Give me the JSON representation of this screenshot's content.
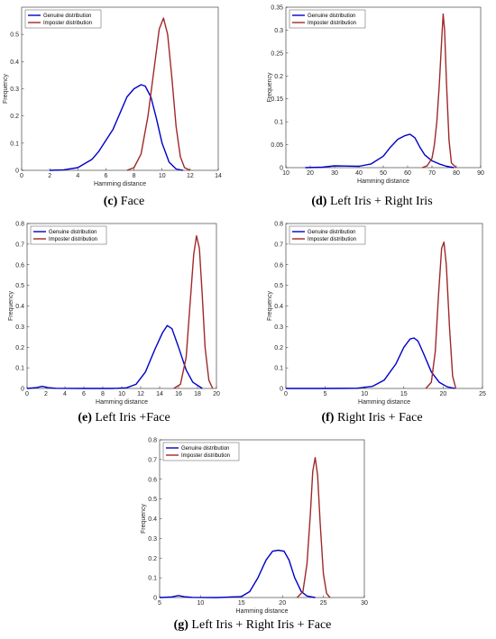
{
  "colors": {
    "genuine": "#0000c8",
    "imposter": "#a0282a",
    "axis": "#262626"
  },
  "panels": [
    {
      "caption_letter": "(c)",
      "caption_text": " Face",
      "chart_data": {
        "type": "line",
        "xlabel": "Hamming distance",
        "ylabel": "Frequency",
        "xlim": [
          0,
          14
        ],
        "ylim": [
          0,
          0.6
        ],
        "xticks": [
          0,
          2,
          4,
          6,
          8,
          10,
          12,
          14
        ],
        "yticks": [
          0,
          0.1,
          0.2,
          0.3,
          0.4,
          0.5
        ],
        "legend": "top-left",
        "grid": false,
        "series": [
          {
            "name": "Genuine distribution",
            "color": "genuine",
            "x": [
              2,
              3,
              4,
              5,
              5.5,
              6,
              6.5,
              7,
              7.5,
              8,
              8.5,
              8.8,
              9.2,
              9.6,
              10,
              10.5,
              11,
              11.5
            ],
            "y": [
              0,
              0.002,
              0.01,
              0.04,
              0.07,
              0.11,
              0.15,
              0.21,
              0.27,
              0.3,
              0.315,
              0.31,
              0.27,
              0.19,
              0.1,
              0.03,
              0.005,
              0
            ]
          },
          {
            "name": "Imposter distribution",
            "color": "imposter",
            "x": [
              7.5,
              8,
              8.5,
              9,
              9.5,
              9.8,
              10.1,
              10.4,
              10.7,
              11,
              11.3,
              11.6,
              12
            ],
            "y": [
              0,
              0.01,
              0.06,
              0.2,
              0.4,
              0.52,
              0.56,
              0.5,
              0.34,
              0.16,
              0.05,
              0.01,
              0
            ]
          }
        ]
      }
    },
    {
      "caption_letter": "(d)",
      "caption_text": " Left Iris + Right Iris",
      "chart_data": {
        "type": "line",
        "xlabel": "Hamming distance",
        "ylabel": "Frequency",
        "xlim": [
          10,
          90
        ],
        "ylim": [
          0,
          0.35
        ],
        "xticks": [
          10,
          20,
          30,
          40,
          50,
          60,
          70,
          80,
          90
        ],
        "yticks": [
          0,
          0.05,
          0.1,
          0.15,
          0.2,
          0.25,
          0.3,
          0.35
        ],
        "legend": "top-left",
        "grid": false,
        "series": [
          {
            "name": "Genuine distribution",
            "color": "genuine",
            "x": [
              18,
              25,
              30,
              40,
              45,
              50,
              53,
              56,
              59,
              61,
              63,
              65,
              67,
              70,
              73,
              76,
              79
            ],
            "y": [
              0,
              0.001,
              0.004,
              0.003,
              0.008,
              0.025,
              0.045,
              0.062,
              0.07,
              0.073,
              0.065,
              0.045,
              0.028,
              0.015,
              0.008,
              0.003,
              0
            ]
          },
          {
            "name": "Imposter distribution",
            "color": "imposter",
            "x": [
              66,
              68,
              70,
              71,
              72,
              73,
              74,
              74.6,
              75.2,
              76,
              77,
              78,
              80
            ],
            "y": [
              0,
              0.004,
              0.02,
              0.05,
              0.1,
              0.18,
              0.28,
              0.335,
              0.3,
              0.18,
              0.06,
              0.01,
              0
            ]
          }
        ]
      }
    },
    {
      "caption_letter": "(e)",
      "caption_text": " Left Iris +Face",
      "chart_data": {
        "type": "line",
        "xlabel": "Hamming distance",
        "ylabel": "Frequency",
        "xlim": [
          0,
          20
        ],
        "ylim": [
          0,
          0.8
        ],
        "xticks": [
          0,
          2,
          4,
          6,
          8,
          10,
          12,
          14,
          16,
          18,
          20
        ],
        "yticks": [
          0,
          0.1,
          0.2,
          0.3,
          0.4,
          0.5,
          0.6,
          0.7,
          0.8
        ],
        "legend": "top-left",
        "grid": false,
        "series": [
          {
            "name": "Genuine distribution",
            "color": "genuine",
            "x": [
              0,
              1,
              1.6,
              2.2,
              3,
              6,
              9,
              10.5,
              11.5,
              12.5,
              13.5,
              14.3,
              14.8,
              15.3,
              16,
              16.8,
              17.5,
              18.5
            ],
            "y": [
              0,
              0.004,
              0.01,
              0.004,
              0.001,
              0,
              0,
              0.003,
              0.02,
              0.08,
              0.19,
              0.27,
              0.305,
              0.29,
              0.2,
              0.09,
              0.03,
              0
            ]
          },
          {
            "name": "Imposter distribution",
            "color": "imposter",
            "x": [
              15.5,
              16.2,
              16.8,
              17.2,
              17.6,
              17.9,
              18.2,
              18.5,
              18.8,
              19.2,
              19.6
            ],
            "y": [
              0,
              0.02,
              0.15,
              0.4,
              0.65,
              0.74,
              0.68,
              0.45,
              0.2,
              0.04,
              0
            ]
          }
        ]
      }
    },
    {
      "caption_letter": "(f)",
      "caption_text": " Right Iris + Face",
      "chart_data": {
        "type": "line",
        "xlabel": "Hamming distance",
        "ylabel": "Frequency",
        "xlim": [
          0,
          25
        ],
        "ylim": [
          0,
          0.8
        ],
        "xticks": [
          0,
          5,
          10,
          15,
          20,
          25
        ],
        "yticks": [
          0,
          0.1,
          0.2,
          0.3,
          0.4,
          0.5,
          0.6,
          0.7,
          0.8
        ],
        "legend": "top-left",
        "grid": false,
        "series": [
          {
            "name": "Genuine distribution",
            "color": "genuine",
            "x": [
              0,
              5,
              9,
              11,
              12.5,
              14,
              15,
              15.8,
              16.3,
              16.8,
              17.5,
              18.5,
              19.5,
              20.5,
              21.5
            ],
            "y": [
              0,
              0,
              0.001,
              0.01,
              0.04,
              0.12,
              0.2,
              0.24,
              0.245,
              0.23,
              0.17,
              0.08,
              0.03,
              0.008,
              0
            ]
          },
          {
            "name": "Imposter distribution",
            "color": "imposter",
            "x": [
              17.8,
              18.5,
              19,
              19.4,
              19.8,
              20.1,
              20.4,
              20.8,
              21.2,
              21.6
            ],
            "y": [
              0,
              0.03,
              0.18,
              0.45,
              0.68,
              0.71,
              0.6,
              0.3,
              0.06,
              0
            ]
          }
        ]
      }
    },
    {
      "caption_letter": "(g)",
      "caption_text": " Left Iris + Right Iris + Face",
      "chart_data": {
        "type": "line",
        "xlabel": "Hamming distance",
        "ylabel": "Frequency",
        "xlim": [
          5,
          30
        ],
        "ylim": [
          0,
          0.8
        ],
        "xticks": [
          5,
          10,
          15,
          20,
          25,
          30
        ],
        "yticks": [
          0,
          0.1,
          0.2,
          0.3,
          0.4,
          0.5,
          0.6,
          0.7,
          0.8
        ],
        "legend": "top-left",
        "grid": false,
        "series": [
          {
            "name": "Genuine distribution",
            "color": "genuine",
            "x": [
              5,
              6.5,
              7.3,
              8,
              9,
              12,
              15,
              16,
              17,
              18,
              18.8,
              19.5,
              20.2,
              20.8,
              21.5,
              22.3,
              23,
              24
            ],
            "y": [
              0,
              0.003,
              0.01,
              0.004,
              0.001,
              0,
              0.005,
              0.03,
              0.1,
              0.19,
              0.235,
              0.24,
              0.235,
              0.19,
              0.1,
              0.03,
              0.008,
              0
            ]
          },
          {
            "name": "Imposter distribution",
            "color": "imposter",
            "x": [
              21.8,
              22.5,
              23,
              23.4,
              23.7,
              24,
              24.3,
              24.6,
              25,
              25.4,
              25.8
            ],
            "y": [
              0,
              0.03,
              0.17,
              0.42,
              0.64,
              0.71,
              0.62,
              0.38,
              0.12,
              0.02,
              0
            ]
          }
        ]
      }
    }
  ]
}
